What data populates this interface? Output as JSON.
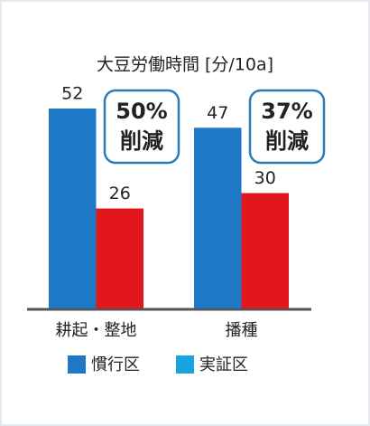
{
  "chart_data": {
    "type": "bar",
    "title": "大豆労働時間 [分/10a]",
    "categories": [
      "耕起・整地",
      "播種"
    ],
    "series": [
      {
        "name": "慣行区",
        "color": "#1d78c6",
        "legend_color": "#1d78c6",
        "values": [
          52,
          47
        ]
      },
      {
        "name": "実証区",
        "color": "#e3161e",
        "legend_color": "#15a6e0",
        "values": [
          26,
          30
        ]
      }
    ],
    "ylim": [
      0,
      60
    ],
    "annotations": [
      {
        "lines": [
          "50%",
          "削減"
        ]
      },
      {
        "lines": [
          "37%",
          "削減"
        ]
      }
    ],
    "annotation_color": "#2a7db5"
  }
}
